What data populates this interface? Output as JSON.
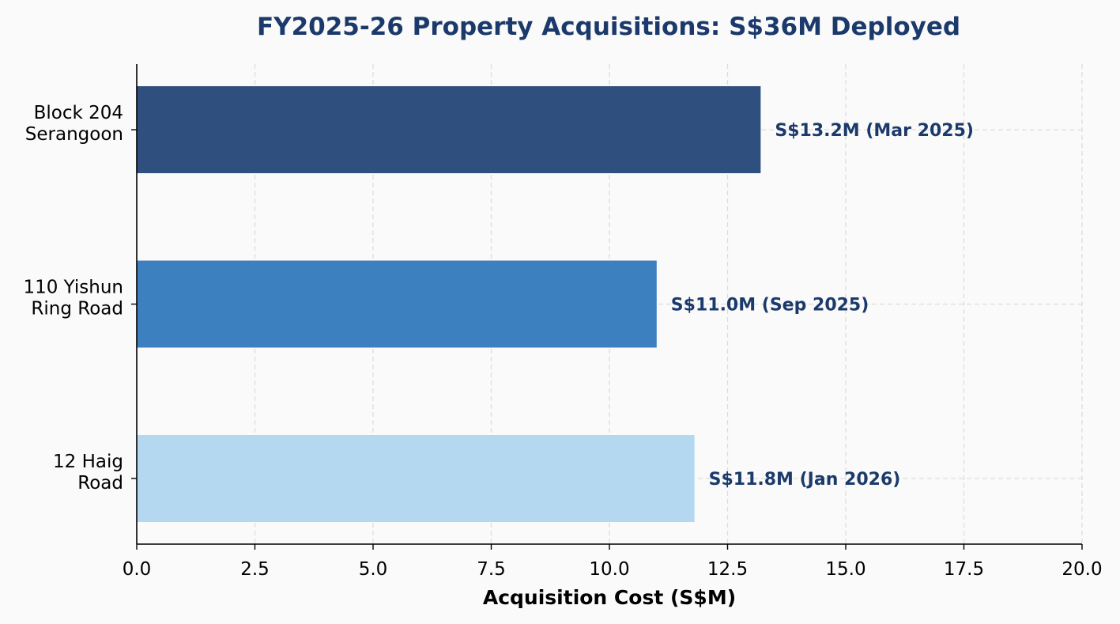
{
  "colors": {
    "background": "#fafafa",
    "title": "#1b3a6b",
    "data_label": "#1b3a6b",
    "grid": "#dddddd",
    "axis": "#000000"
  },
  "chart_data": {
    "type": "bar",
    "orientation": "horizontal",
    "title": "FY2025-26 Property Acquisitions: S$36M Deployed",
    "xlabel": "Acquisition Cost (S$M)",
    "ylabel": "",
    "xlim": [
      0,
      20
    ],
    "xticks": [
      0,
      2.5,
      5,
      7.5,
      10,
      12.5,
      15,
      17.5,
      20
    ],
    "xtick_labels": [
      "0.0",
      "2.5",
      "5.0",
      "7.5",
      "10.0",
      "12.5",
      "15.0",
      "17.5",
      "20.0"
    ],
    "grid": true,
    "grid_style": "dashed",
    "categories": [
      [
        "Block 204",
        "Serangoon"
      ],
      [
        "110 Yishun",
        "Ring Road"
      ],
      [
        "12 Haig",
        "Road"
      ]
    ],
    "values": [
      13.2,
      11.0,
      11.8
    ],
    "bar_colors": [
      "#2f4f7f",
      "#3d80c0",
      "#b3d8f0"
    ],
    "data_labels": [
      "S$13.2M  (Mar 2025)",
      "S$11.0M  (Sep 2025)",
      "S$11.8M  (Jan 2026)"
    ]
  }
}
